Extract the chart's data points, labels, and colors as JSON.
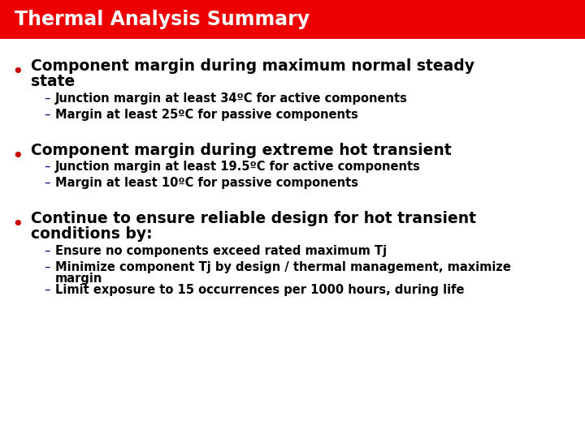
{
  "title": "Thermal Analysis Summary",
  "title_bg_color": "#ee0000",
  "title_text_color": "#ffffff",
  "bg_color": "#f0f0f0",
  "bullet_color": "#cc0000",
  "dash_color": "#000080",
  "text_color": "#000000",
  "bullet1_main_line1": "Component margin during maximum normal steady",
  "bullet1_main_line2": "state",
  "bullet1_subs": [
    "Junction margin at least 34ºC for active components",
    "Margin at least 25ºC for passive components"
  ],
  "bullet2_main": "Component margin during extreme hot transient",
  "bullet2_subs": [
    "Junction margin at least 19.5ºC for active components",
    "Margin at least 10ºC for passive components"
  ],
  "bullet3_main_line1": "Continue to ensure reliable design for hot transient",
  "bullet3_main_line2": "conditions by:",
  "bullet3_subs": [
    "Ensure no components exceed rated maximum Tj",
    "Minimize component Tj by design / thermal management, maximize\nmargin",
    "Limit exposure to 15 occurrences per 1000 hours, during life"
  ]
}
